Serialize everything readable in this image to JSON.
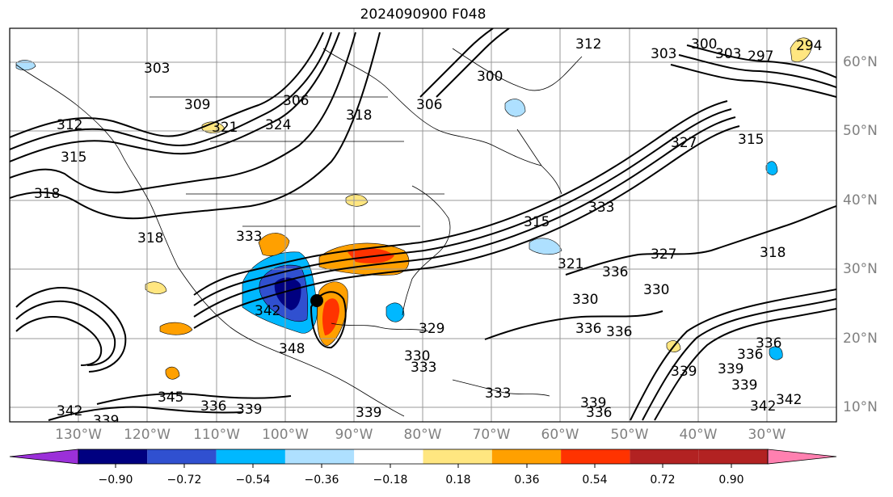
{
  "title": "2024090900 F048",
  "lat_labels": [
    "60°N",
    "50°N",
    "40°N",
    "30°N",
    "20°N",
    "10°N"
  ],
  "lon_labels": [
    "130°W",
    "120°W",
    "110°W",
    "100°W",
    "90°W",
    "80°W",
    "70°W",
    "60°W",
    "50°W",
    "40°W",
    "30°W"
  ],
  "colorbar": {
    "ticks": [
      "−0.90",
      "−0.72",
      "−0.54",
      "−0.36",
      "−0.18",
      "0.18",
      "0.36",
      "0.54",
      "0.72",
      "0.90"
    ],
    "colors": [
      "#9b30d9",
      "#000080",
      "#3050d0",
      "#00b8ff",
      "#aee0ff",
      "#ffffff",
      "#ffe680",
      "#ffa000",
      "#ff3300",
      "#b22222",
      "#ff80b0"
    ]
  },
  "contour_labels": [
    "303",
    "309",
    "321",
    "306",
    "324",
    "318",
    "312",
    "315",
    "300",
    "306",
    "312",
    "303",
    "300",
    "303",
    "297",
    "294",
    "327",
    "315",
    "318",
    "333",
    "315",
    "333",
    "321",
    "327",
    "330",
    "318",
    "330",
    "336",
    "336",
    "339",
    "342",
    "339",
    "345",
    "348",
    "342",
    "339",
    "336",
    "339",
    "339",
    "330",
    "333",
    "329",
    "333",
    "339",
    "336",
    "342",
    "336",
    "339",
    "342",
    "318",
    "336",
    "336"
  ],
  "colors": {
    "contour": "#000000",
    "grid": "#999999",
    "border": "#000000"
  }
}
